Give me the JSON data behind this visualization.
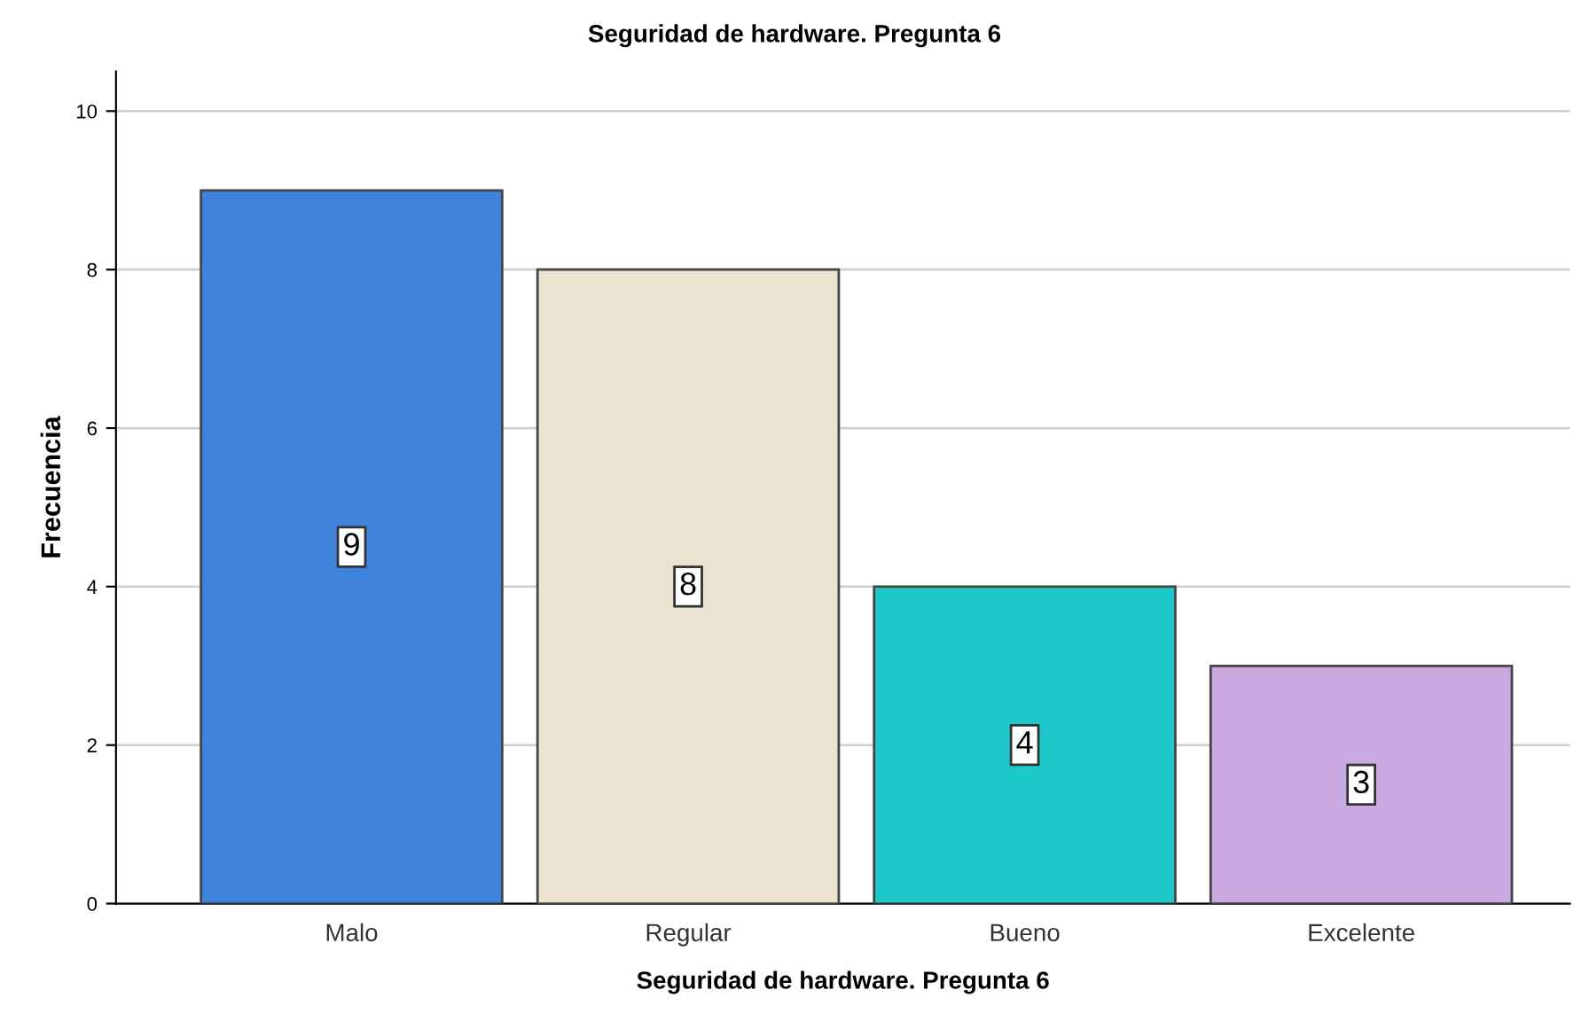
{
  "chart_data": {
    "type": "bar",
    "title": "Seguridad de hardware. Pregunta 6",
    "xlabel": "Seguridad de hardware. Pregunta 6",
    "ylabel": "Frecuencia",
    "categories": [
      "Malo",
      "Regular",
      "Bueno",
      "Excelente"
    ],
    "values": [
      9,
      8,
      4,
      3
    ],
    "colors": [
      "#3f83dc",
      "#ebe3cf",
      "#1fc8c8",
      "#caa8e0"
    ],
    "ylim": [
      0,
      10.5
    ],
    "yticks": [
      0,
      2,
      4,
      6,
      8,
      10
    ],
    "grid": "y",
    "data_labels": true
  }
}
